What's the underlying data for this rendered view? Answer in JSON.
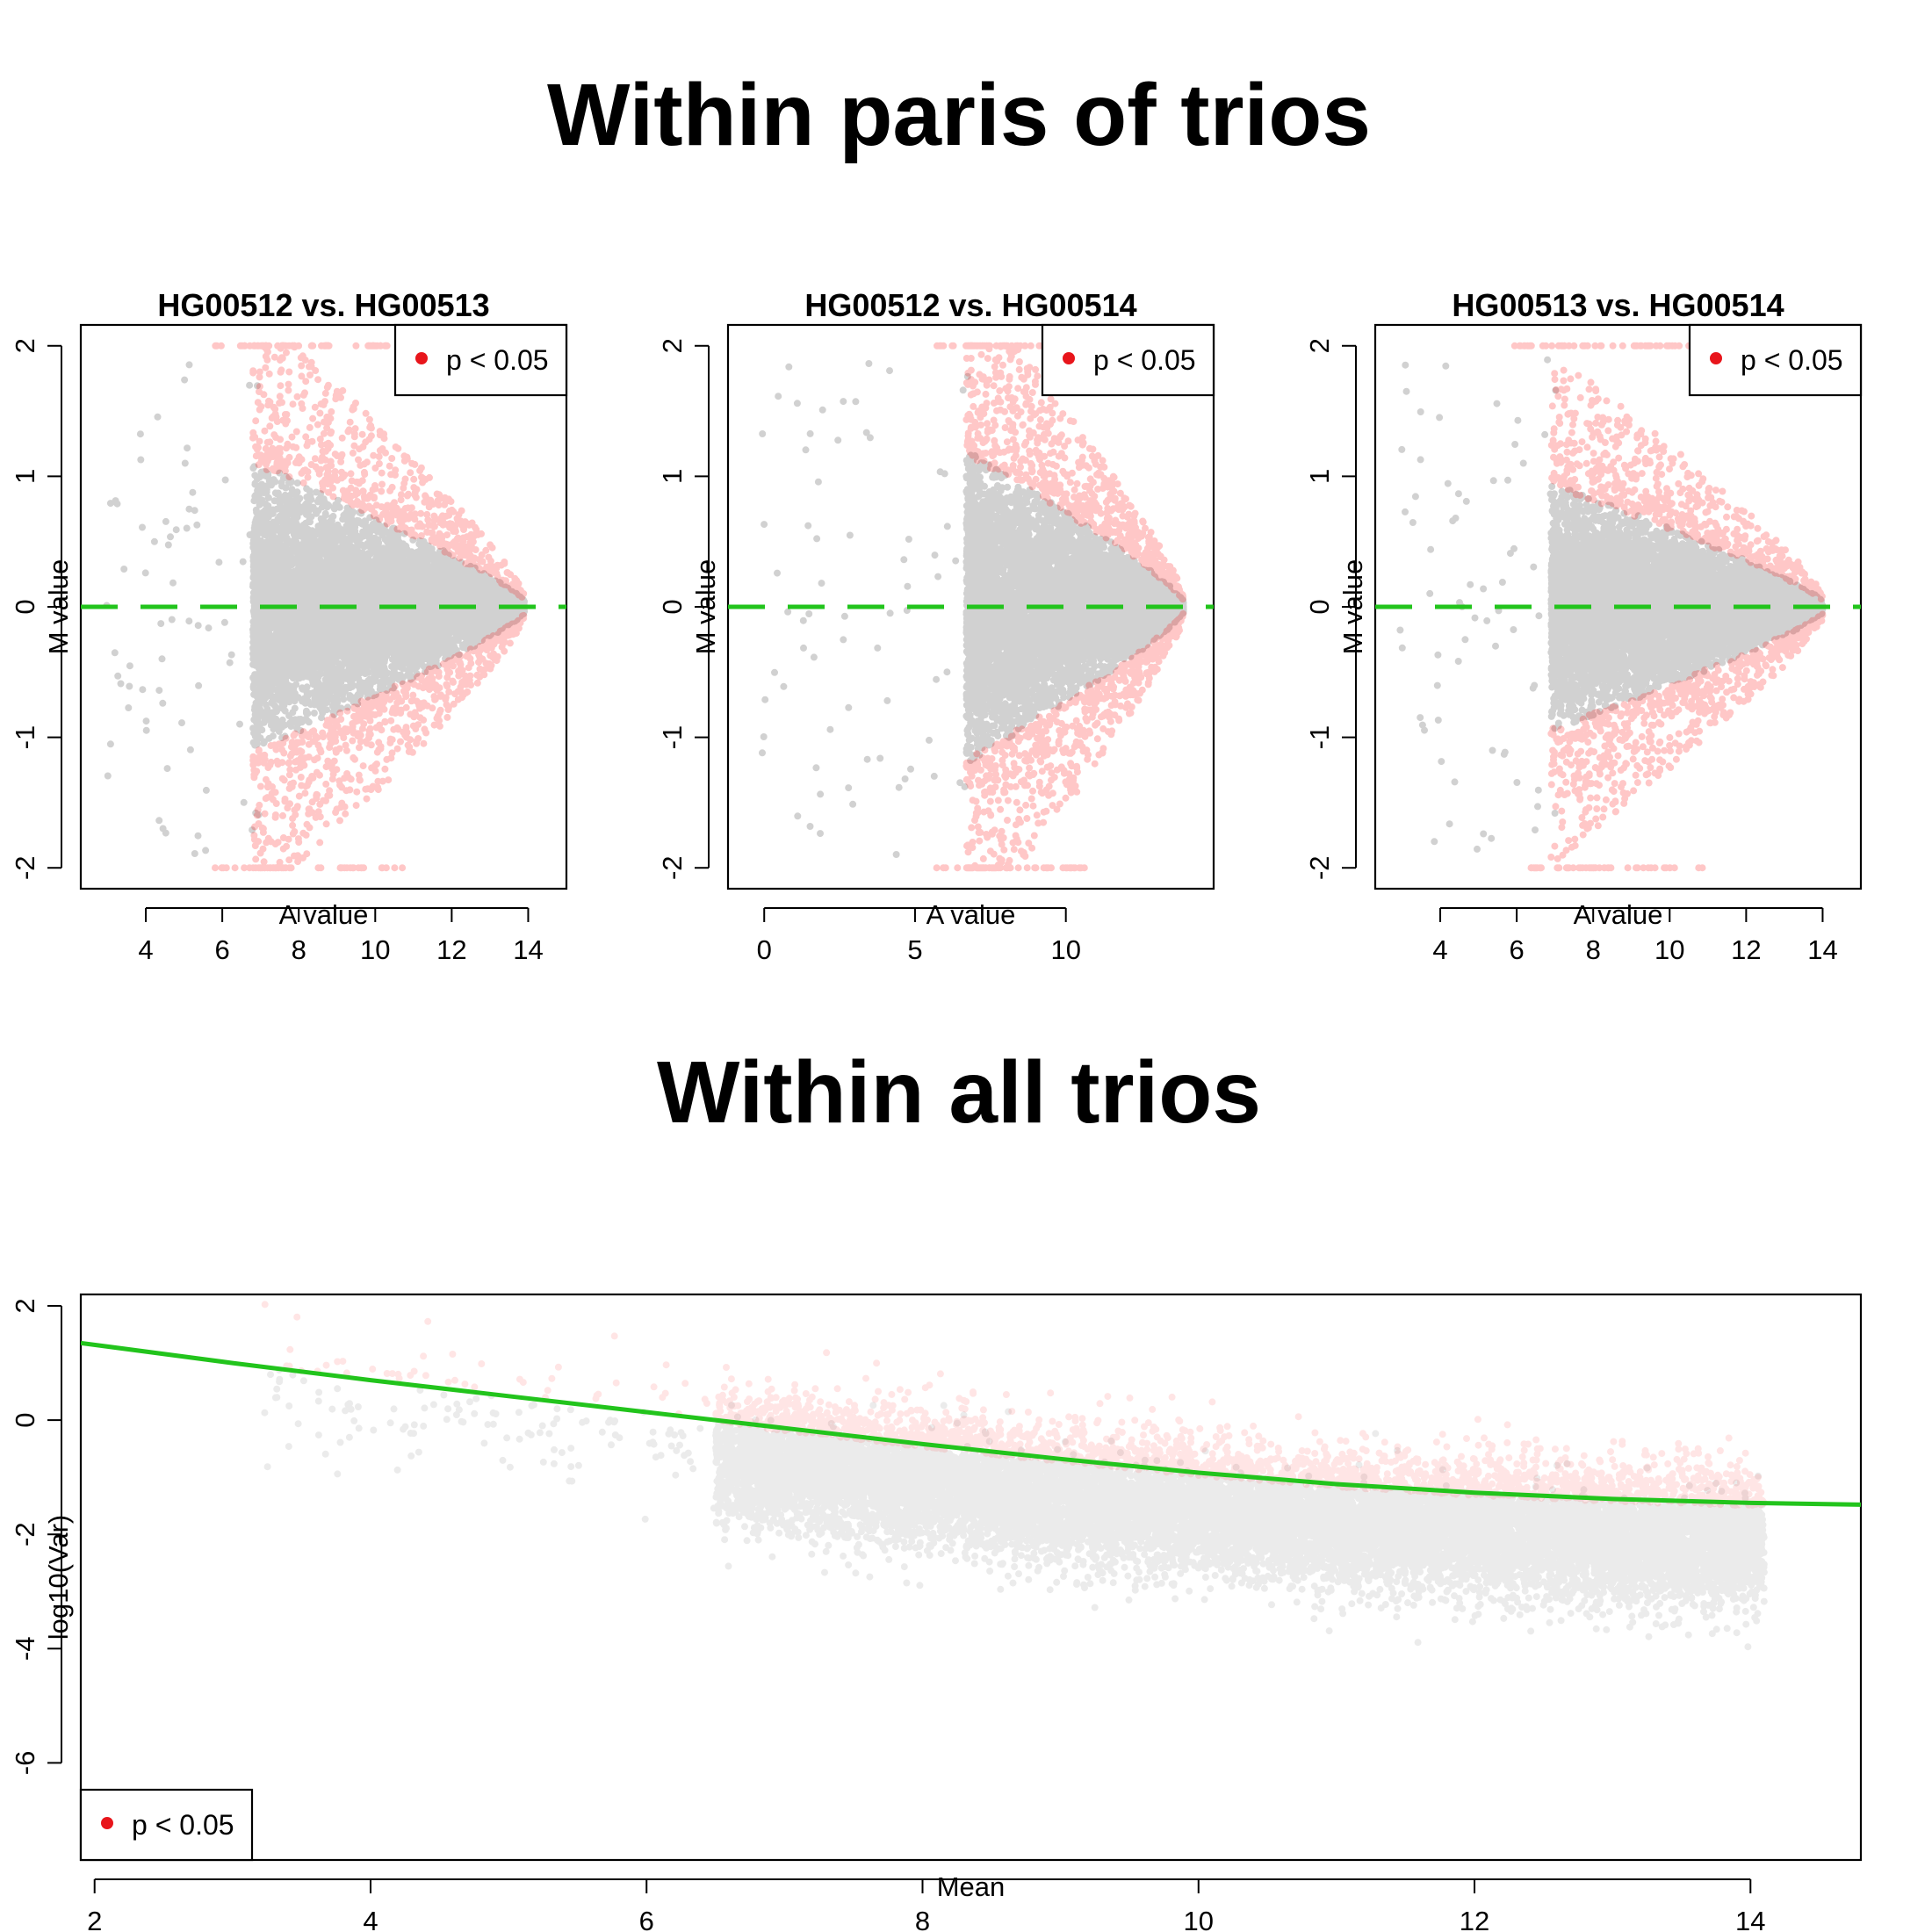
{
  "titles": {
    "top": "Within paris of trios",
    "bottom": "Within all trios"
  },
  "colors": {
    "significant": "#ff0000",
    "nonsignificant": "#000000",
    "fit_line": "#22c41c",
    "legend_dot": "#e8151b"
  },
  "chart_data": [
    {
      "type": "scatter",
      "title": "HG00512 vs. HG00513",
      "xlabel": "A value",
      "ylabel": "M value",
      "xlim": [
        2.3,
        15
      ],
      "ylim": [
        -2.16,
        2.16
      ],
      "xticks": [
        4,
        6,
        8,
        10,
        12,
        14
      ],
      "yticks": [
        -2,
        -1,
        0,
        1,
        2
      ],
      "reference_line": {
        "y": 0,
        "style": "dashed"
      },
      "legend": {
        "label": "p < 0.05",
        "position": "top-right"
      },
      "point_cloud": {
        "a_range": [
          6.8,
          13.9
        ],
        "m_envelope_peak": 1.3,
        "m_cap": 2,
        "sig_color": "red",
        "nonsig_color": "black"
      }
    },
    {
      "type": "scatter",
      "title": "HG00512 vs. HG00514",
      "xlabel": "A value",
      "ylabel": "M value",
      "xlim": [
        -1.2,
        14.9
      ],
      "ylim": [
        -2.16,
        2.16
      ],
      "xticks": [
        0,
        5,
        10
      ],
      "yticks": [
        -2,
        -1,
        0,
        1,
        2
      ],
      "reference_line": {
        "y": 0,
        "style": "dashed"
      },
      "legend": {
        "label": "p < 0.05",
        "position": "top-right"
      },
      "point_cloud": {
        "a_range": [
          6.7,
          13.9
        ],
        "m_envelope_peak": 1.4,
        "m_cap": 2,
        "sig_color": "red",
        "nonsig_color": "black"
      }
    },
    {
      "type": "scatter",
      "title": "HG00513 vs. HG00514",
      "xlabel": "A value",
      "ylabel": "M value",
      "xlim": [
        2.3,
        15
      ],
      "ylim": [
        -2.16,
        2.16
      ],
      "xticks": [
        4,
        6,
        8,
        10,
        12,
        14
      ],
      "yticks": [
        -2,
        -1,
        0,
        1,
        2
      ],
      "reference_line": {
        "y": 0,
        "style": "dashed"
      },
      "legend": {
        "label": "p < 0.05",
        "position": "top-right"
      },
      "point_cloud": {
        "a_range": [
          6.9,
          14.0
        ],
        "m_envelope_peak": 1.1,
        "m_cap": 2,
        "sig_color": "red",
        "nonsig_color": "black"
      }
    },
    {
      "type": "scatter",
      "title": "",
      "xlabel": "Mean",
      "ylabel": "log10(Var)",
      "xlim": [
        1.9,
        14.8
      ],
      "ylim": [
        -7.7,
        2.2
      ],
      "xticks": [
        2,
        4,
        6,
        8,
        10,
        12,
        14
      ],
      "yticks": [
        -6,
        -4,
        -2,
        0,
        2
      ],
      "legend": {
        "label": "p < 0.05",
        "position": "bottom-left"
      },
      "fit_line": {
        "x": [
          1.9,
          3,
          4,
          5,
          6,
          7,
          8,
          9,
          10,
          11,
          12,
          13,
          14,
          14.8
        ],
        "y": [
          1.35,
          1.0,
          0.7,
          0.42,
          0.14,
          -0.14,
          -0.42,
          -0.68,
          -0.92,
          -1.12,
          -1.27,
          -1.38,
          -1.45,
          -1.48
        ]
      },
      "point_cloud": {
        "mean_range": [
          6.5,
          14.5
        ],
        "sig_above_fit": true,
        "sig_color": "red",
        "nonsig_color": "black"
      }
    }
  ]
}
